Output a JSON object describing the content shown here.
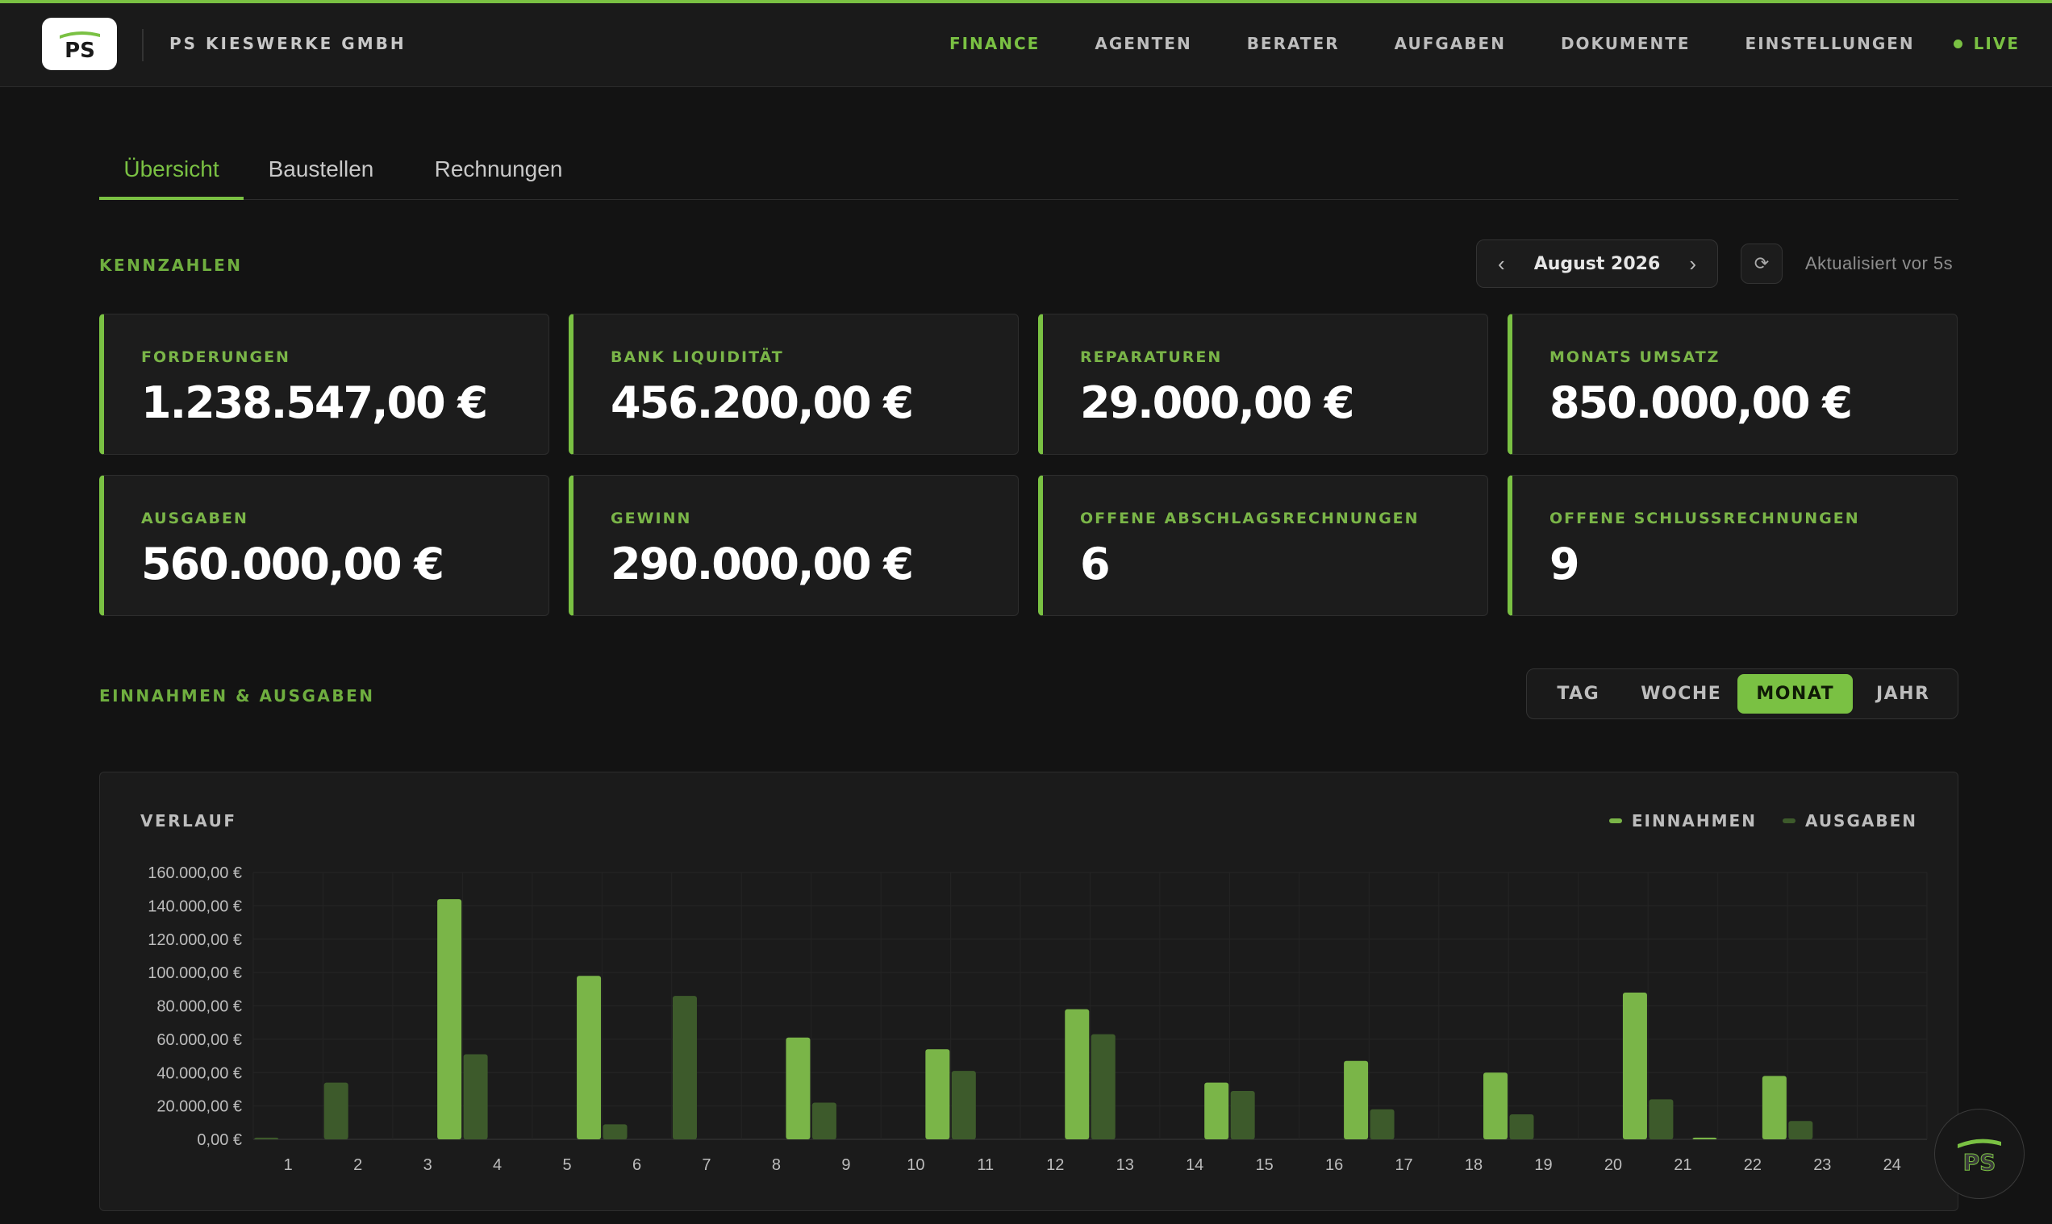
{
  "company": "PS KIESWERKE GMBH",
  "logo_text": "PS",
  "nav": {
    "items": [
      "FINANCE",
      "AGENTEN",
      "BERATER",
      "AUFGABEN",
      "DOKUMENTE",
      "EINSTELLUNGEN"
    ],
    "active": "FINANCE",
    "live_label": "LIVE"
  },
  "tabs": [
    "Übersicht",
    "Baustellen",
    "Rechnungen"
  ],
  "active_tab": "Übersicht",
  "kpi_section": {
    "label": "KENNZAHLEN",
    "month": "August 2026",
    "prev_icon": "‹",
    "next_icon": "›",
    "refresh_icon": "⟳",
    "updated": "Aktualisiert vor 5s"
  },
  "cards": [
    {
      "label": "FORDERUNGEN",
      "value": "1.238.547,00 €"
    },
    {
      "label": "BANK LIQUIDITÄT",
      "value": "456.200,00 €"
    },
    {
      "label": "REPARATUREN",
      "value": "29.000,00 €"
    },
    {
      "label": "MONATS UMSATZ",
      "value": "850.000,00 €"
    },
    {
      "label": "AUSGABEN",
      "value": "560.000,00 €"
    },
    {
      "label": "GEWINN",
      "value": "290.000,00 €"
    },
    {
      "label": "OFFENE ABSCHLAGSRECHNUNGEN",
      "value": "6"
    },
    {
      "label": "OFFENE SCHLUSSRECHNUNGEN",
      "value": "9"
    }
  ],
  "chart_section": {
    "label": "EINNAHMEN & AUSGABEN",
    "periods": [
      "TAG",
      "WOCHE",
      "MONAT",
      "JAHR"
    ],
    "active_period": "MONAT"
  },
  "colors": {
    "accent": "#7ac143",
    "einnahmen": "#7ab548",
    "ausgaben": "#3d5a2b",
    "background": "#131313",
    "panel": "#1c1c1c"
  },
  "chart_data": {
    "type": "bar",
    "title": "VERLAUF",
    "categories": [
      "1",
      "2",
      "3",
      "4",
      "5",
      "6",
      "7",
      "8",
      "9",
      "10",
      "11",
      "12",
      "13",
      "14",
      "15",
      "16",
      "17",
      "18",
      "19",
      "20",
      "21",
      "22",
      "23",
      "24"
    ],
    "series": [
      {
        "name": "AUSGABEN",
        "values": [
          1000,
          34000,
          0,
          51000,
          0,
          9000,
          86000,
          0,
          22000,
          0,
          41000,
          0,
          63000,
          0,
          29000,
          0,
          18000,
          0,
          15000,
          0,
          24000,
          0,
          11000,
          0
        ]
      },
      {
        "name": "EINNAHMEN",
        "values": [
          0,
          0,
          144000,
          0,
          98000,
          0,
          0,
          61000,
          0,
          54000,
          0,
          78000,
          0,
          34000,
          0,
          47000,
          0,
          40000,
          0,
          88000,
          1000,
          38000,
          0,
          0
        ]
      }
    ],
    "ylim": [
      0,
      160000
    ],
    "yticks": [
      "0,00 €",
      "20.000,00 €",
      "40.000,00 €",
      "60.000,00 €",
      "80.000,00 €",
      "100.000,00 €",
      "120.000,00 €",
      "140.000,00 €",
      "160.000,00 €"
    ],
    "grid": true,
    "legend": "top-right"
  }
}
